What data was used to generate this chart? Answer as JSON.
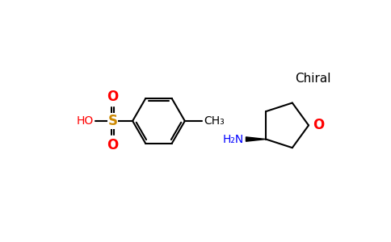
{
  "background_color": "#ffffff",
  "bond_color": "#000000",
  "oxygen_color": "#ff0000",
  "sulfur_color": "#cc8800",
  "nitrogen_color": "#0000ff",
  "carbon_color": "#000000",
  "chiral_label": "Chiral",
  "nh2_label": "H₂N",
  "ch3_label": "CH₃",
  "ho_label": "HO",
  "s_label": "S",
  "o_label": "O"
}
